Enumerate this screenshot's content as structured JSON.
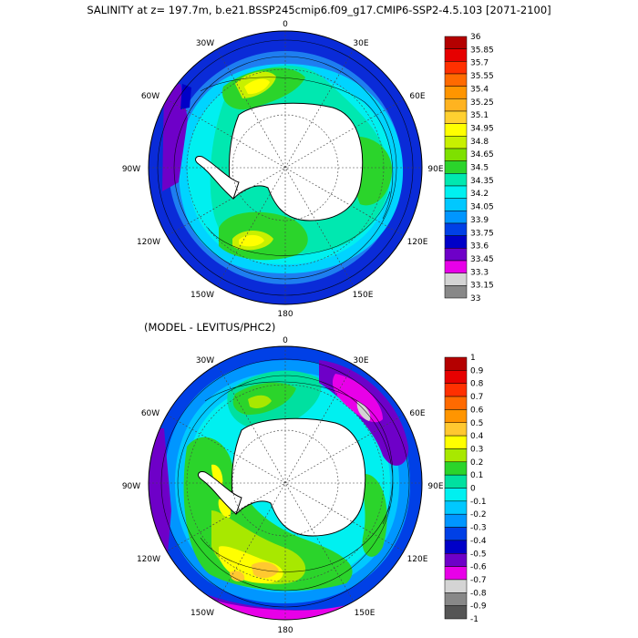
{
  "title": "SALINITY at z= 197.7m, b.e21.BSSP245cmip6.f09_g17.CMIP6-SSP2-4.5.103 [2071-2100]",
  "subtitle": "(MODEL - LEVITUS/PHC2)",
  "longitude_labels": [
    "0",
    "30E",
    "60E",
    "90E",
    "120E",
    "150E",
    "180",
    "150W",
    "120W",
    "90W",
    "60W",
    "30W"
  ],
  "map_top": {
    "projection": "south-polar-stereographic",
    "colorbar": {
      "labels": [
        "36",
        "35.85",
        "35.7",
        "35.55",
        "35.4",
        "35.25",
        "35.1",
        "34.95",
        "34.8",
        "34.65",
        "34.5",
        "34.35",
        "34.2",
        "34.05",
        "33.9",
        "33.75",
        "33.6",
        "33.45",
        "33.3",
        "33.15",
        "33"
      ],
      "colors": [
        "#b40000",
        "#e60000",
        "#ff3000",
        "#ff6a00",
        "#ff9500",
        "#ffb320",
        "#ffd030",
        "#ffff00",
        "#c8f000",
        "#7ee000",
        "#2bd42b",
        "#00e8b0",
        "#00f0f0",
        "#00c8ff",
        "#0096ff",
        "#0040e6",
        "#0000c8",
        "#6e00c8",
        "#e800e8",
        "#d4d4d4",
        "#888888"
      ]
    }
  },
  "map_bottom": {
    "projection": "south-polar-stereographic",
    "colorbar": {
      "labels": [
        "1",
        "0.9",
        "0.8",
        "0.7",
        "0.6",
        "0.5",
        "0.4",
        "0.3",
        "0.2",
        "0.1",
        "0",
        "-0.1",
        "-0.2",
        "-0.3",
        "-0.4",
        "-0.5",
        "-0.6",
        "-0.7",
        "-0.8",
        "-0.9",
        "-1"
      ],
      "colors": [
        "#b40000",
        "#e60000",
        "#ff3000",
        "#ff6a00",
        "#ff9500",
        "#ffc830",
        "#ffff00",
        "#a8e800",
        "#2bd42b",
        "#00e0a0",
        "#00f0f0",
        "#00c8ff",
        "#0096ff",
        "#0040e6",
        "#0000c8",
        "#6e00c8",
        "#e800e8",
        "#d4d4d4",
        "#888888",
        "#555555"
      ]
    }
  }
}
